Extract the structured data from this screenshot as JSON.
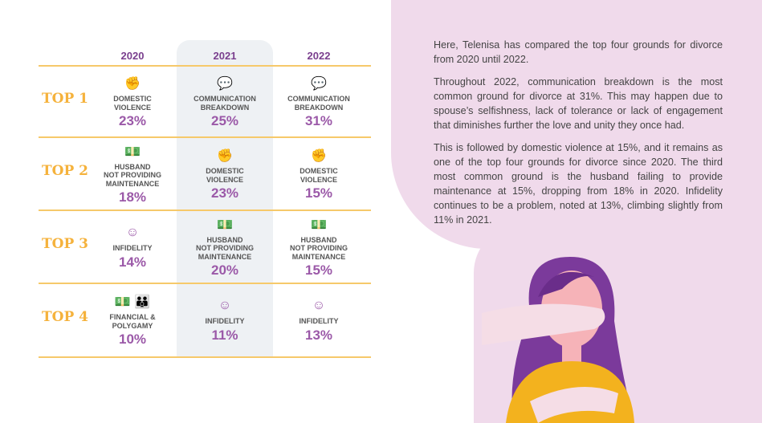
{
  "table": {
    "years": [
      "2020",
      "2021",
      "2022"
    ],
    "rows": [
      {
        "label": "TOP 1",
        "cells": [
          {
            "icon": "domestic-violence-icon",
            "text": "DOMESTIC\nVIOLENCE",
            "pct": "23%"
          },
          {
            "icon": "broken-speech-icon",
            "text": "COMMUNICATION\nBREAKDOWN",
            "pct": "25%"
          },
          {
            "icon": "broken-speech-icon",
            "text": "COMMUNICATION\nBREAKDOWN",
            "pct": "31%"
          }
        ]
      },
      {
        "label": "TOP 2",
        "cells": [
          {
            "icon": "money-icon",
            "text": "HUSBAND\nNOT PROVIDING\nMAINTENANCE",
            "pct": "18%"
          },
          {
            "icon": "domestic-violence-icon",
            "text": "DOMESTIC\nVIOLENCE",
            "pct": "23%"
          },
          {
            "icon": "domestic-violence-icon",
            "text": "DOMESTIC\nVIOLENCE",
            "pct": "15%"
          }
        ]
      },
      {
        "label": "TOP 3",
        "cells": [
          {
            "icon": "face-icon",
            "text": "INFIDELITY",
            "pct": "14%"
          },
          {
            "icon": "money-icon",
            "text": "HUSBAND\nNOT PROVIDING\nMAINTENANCE",
            "pct": "20%"
          },
          {
            "icon": "money-icon",
            "text": "HUSBAND\nNOT PROVIDING\nMAINTENANCE",
            "pct": "15%"
          }
        ]
      },
      {
        "label": "TOP 4",
        "cells": [
          {
            "icon": "money-polygamy-icon",
            "text": "FINANCIAL &\nPOLYGAMY",
            "pct": "10%"
          },
          {
            "icon": "face-icon",
            "text": "INFIDELITY",
            "pct": "11%"
          },
          {
            "icon": "face-icon",
            "text": "INFIDELITY",
            "pct": "13%"
          }
        ]
      }
    ]
  },
  "paragraphs": [
    "Here, Telenisa has compared the top four grounds for divorce from 2020 until 2022.",
    "Throughout 2022, communication breakdown is the most common ground for divorce at 31%. This may happen due to spouse’s selfishness, lack of tolerance or lack of engagement that diminishes further the love and unity they once had.",
    "This is followed by domestic violence at 15%, and it remains as one of the top four grounds for divorce since 2020. The third most common ground is the husband failing to provide maintenance at 15%, dropping from 18% in 2020. Infidelity continues to be a problem, noted at 13%, climbing slightly from 11% in 2021."
  ],
  "colors": {
    "accent": "#9b59a8",
    "gold": "#f5b23c",
    "panel": "#f0daeb",
    "highlight": "#eef1f4"
  }
}
